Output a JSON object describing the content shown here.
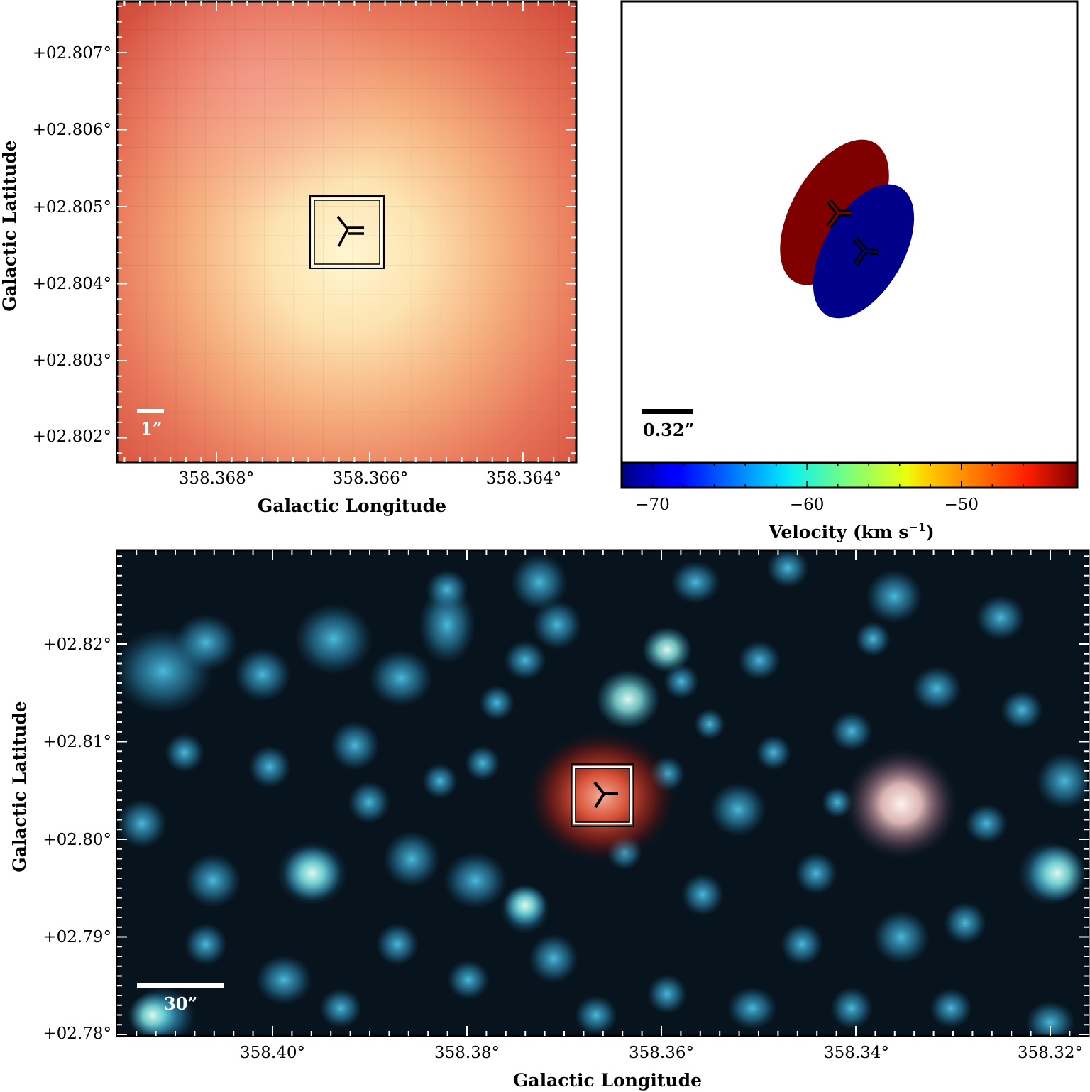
{
  "panel_a": {
    "x_ticks": [
      "358.368°",
      "358.366°",
      "358.364°"
    ],
    "y_ticks": [
      "+02.807°",
      "+02.806°",
      "+02.805°",
      "+02.804°",
      "+02.803°",
      "+02.802°"
    ],
    "xlabel": "Galactic Longitude",
    "ylabel": "Galactic Latitude",
    "scale_bar": "1”"
  },
  "panel_b": {
    "scale_bar": "0.32”",
    "colorbar": {
      "ticks": [
        "−70",
        "−60",
        "−50"
      ],
      "label": "Velocity (km s",
      "label_sup": "−1",
      "label_end": ")",
      "vmin": -72,
      "vmax": -42.5
    },
    "components": [
      {
        "color": "#800000",
        "marker": "maser-marker-red"
      },
      {
        "color": "#00008b",
        "marker": "maser-marker-blue"
      }
    ]
  },
  "panel_c": {
    "x_ticks": [
      "358.40°",
      "358.38°",
      "358.36°",
      "358.34°",
      "358.32°"
    ],
    "y_ticks": [
      "+02.82°",
      "+02.81°",
      "+02.80°",
      "+02.79°",
      "+02.78°"
    ],
    "xlabel": "Galactic Longitude",
    "ylabel": "Galactic Latitude",
    "scale_bar": "30”"
  }
}
